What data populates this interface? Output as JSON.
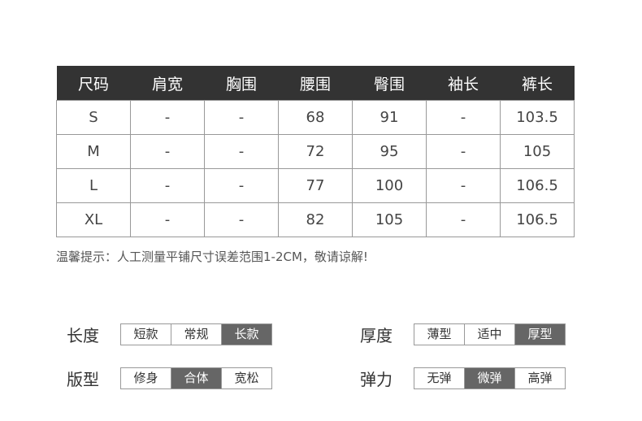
{
  "table": {
    "headers": [
      "尺码",
      "肩宽",
      "胸围",
      "腰围",
      "臀围",
      "袖长",
      "裤长"
    ],
    "rows": [
      [
        "S",
        "-",
        "-",
        "68",
        "91",
        "-",
        "103.5"
      ],
      [
        "M",
        "-",
        "-",
        "72",
        "95",
        "-",
        "105"
      ],
      [
        "L",
        "-",
        "-",
        "77",
        "100",
        "-",
        "106.5"
      ],
      [
        "XL",
        "-",
        "-",
        "82",
        "105",
        "-",
        "106.5"
      ]
    ]
  },
  "tip": "温馨提示：人工测量平铺尺寸误差范围1-2CM，敬请谅解!",
  "attributes": [
    {
      "label": "长度",
      "options": [
        "短款",
        "常规",
        "长款"
      ],
      "selected": 2
    },
    {
      "label": "厚度",
      "options": [
        "薄型",
        "适中",
        "厚型"
      ],
      "selected": 2
    },
    {
      "label": "版型",
      "options": [
        "修身",
        "合体",
        "宽松"
      ],
      "selected": 1
    },
    {
      "label": "弹力",
      "options": [
        "无弹",
        "微弹",
        "高弹"
      ],
      "selected": 1
    }
  ],
  "colors": {
    "header_bg": "#333333",
    "selected_bg": "#666666"
  }
}
